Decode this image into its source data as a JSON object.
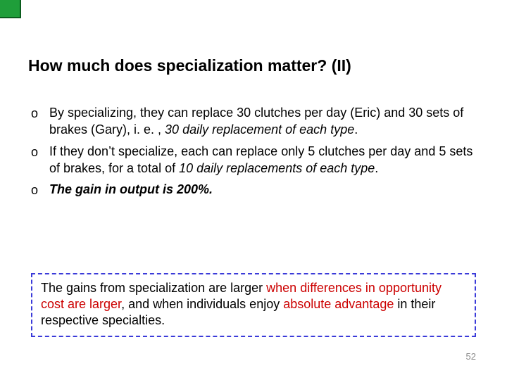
{
  "accent_color": "#1f9e3a",
  "title": "How much does specialization matter? (II)",
  "bullets": [
    {
      "marker": "o",
      "pre": "By specializing, they can replace 30 clutches per day (Eric) and 30 sets of brakes (Gary), i. e. , ",
      "italic": "30 daily replacement of each type",
      "post": "."
    },
    {
      "marker": "o",
      "pre": "If they don’t specialize, each can replace only 5 clutches per day and 5 sets of brakes, for a total of ",
      "italic": "10 daily replacements of each type",
      "post": "."
    },
    {
      "marker": "o",
      "bolditalic": "The gain in output is 200%."
    }
  ],
  "note": {
    "p1": "The gains from specialization are larger ",
    "r1": "when differences in opportunity cost are larger",
    "p2": ", and when individuals enjoy ",
    "r2": "absolute advantage",
    "p3": " in their respective specialties."
  },
  "page_number": "52",
  "colors": {
    "dash_border": "#3b3bd9",
    "red_text": "#cc0000",
    "page_num": "#888888"
  }
}
